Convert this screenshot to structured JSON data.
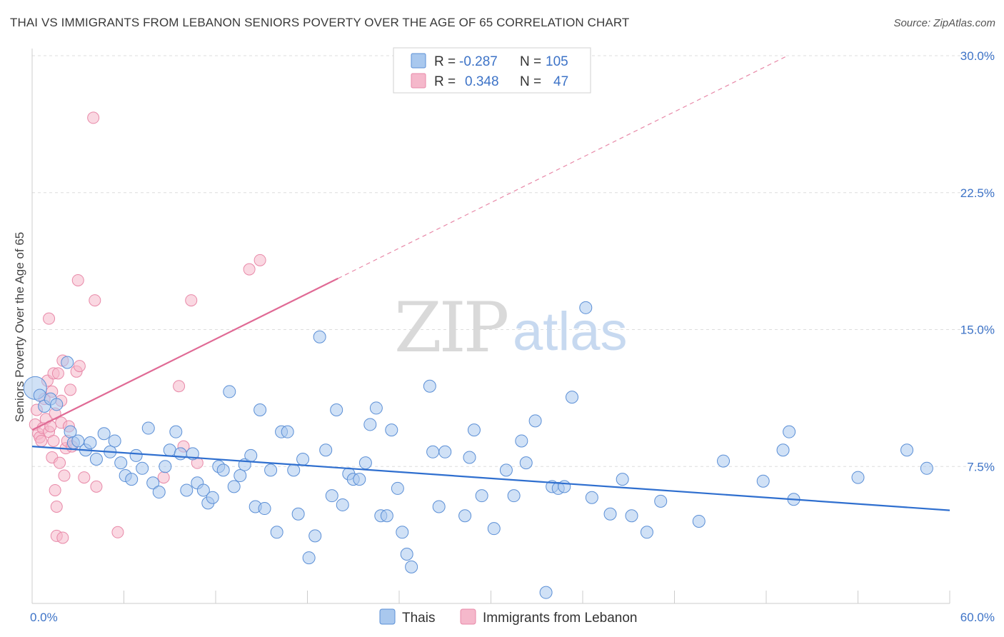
{
  "title": "THAI VS IMMIGRANTS FROM LEBANON SENIORS POVERTY OVER THE AGE OF 65 CORRELATION CHART",
  "source": "Source: ZipAtlas.com",
  "watermark": {
    "zip": "ZIP",
    "atlas": "atlas"
  },
  "colors": {
    "thais_fill": "#a9c8ee",
    "thais_stroke": "#5b8fd6",
    "thais_line": "#2f6fcf",
    "lebanon_fill": "#f5b8cb",
    "lebanon_stroke": "#e889a8",
    "lebanon_line": "#e06a95",
    "tick_label": "#3d73c7",
    "grid": "#dddddd"
  },
  "legend": {
    "rows": [
      {
        "r_label": "R =",
        "r_value": "-0.287",
        "n_label": "N =",
        "n_value": "105"
      },
      {
        "r_label": "R =",
        "r_value": "0.348",
        "n_label": "N =",
        "n_value": "47"
      }
    ]
  },
  "bottom_legend": [
    "Thais",
    "Immigrants from Lebanon"
  ],
  "chart_data": {
    "type": "scatter",
    "title": "THAI VS IMMIGRANTS FROM LEBANON SENIORS POVERTY OVER THE AGE OF 65 CORRELATION CHART",
    "xlabel": "",
    "ylabel": "Seniors Poverty Over the Age of 65",
    "xlim": [
      0,
      60
    ],
    "ylim": [
      0,
      30
    ],
    "x_tick_labels": [
      "0.0%",
      "60.0%"
    ],
    "y_tick_labels": [
      "7.5%",
      "15.0%",
      "22.5%",
      "30.0%"
    ],
    "y_ticks": [
      7.5,
      15.0,
      22.5,
      30.0
    ],
    "grid": true,
    "legend_position": "top-center",
    "series": [
      {
        "name": "Thais",
        "trend": {
          "x": [
            0,
            60
          ],
          "y": [
            8.6,
            5.1
          ]
        },
        "points": [
          [
            0.2,
            11.8
          ],
          [
            0.5,
            11.4
          ],
          [
            0.8,
            10.8
          ],
          [
            1.2,
            11.2
          ],
          [
            1.6,
            10.9
          ],
          [
            2.3,
            13.2
          ],
          [
            2.5,
            9.4
          ],
          [
            2.7,
            8.8
          ],
          [
            3.0,
            8.9
          ],
          [
            3.5,
            8.4
          ],
          [
            3.8,
            8.8
          ],
          [
            4.2,
            7.9
          ],
          [
            4.7,
            9.3
          ],
          [
            5.1,
            8.3
          ],
          [
            5.4,
            8.9
          ],
          [
            5.8,
            7.7
          ],
          [
            6.1,
            7.0
          ],
          [
            6.5,
            6.8
          ],
          [
            6.8,
            8.1
          ],
          [
            7.2,
            7.4
          ],
          [
            7.6,
            9.6
          ],
          [
            7.9,
            6.6
          ],
          [
            8.3,
            6.1
          ],
          [
            8.7,
            7.5
          ],
          [
            9.0,
            8.4
          ],
          [
            9.4,
            9.4
          ],
          [
            9.7,
            8.2
          ],
          [
            10.1,
            6.2
          ],
          [
            10.5,
            8.2
          ],
          [
            10.8,
            6.6
          ],
          [
            11.2,
            6.2
          ],
          [
            11.5,
            5.5
          ],
          [
            11.8,
            5.8
          ],
          [
            12.2,
            7.5
          ],
          [
            12.5,
            7.3
          ],
          [
            12.9,
            11.6
          ],
          [
            13.2,
            6.4
          ],
          [
            13.6,
            7.0
          ],
          [
            13.9,
            7.6
          ],
          [
            14.3,
            8.1
          ],
          [
            14.6,
            5.3
          ],
          [
            14.9,
            10.6
          ],
          [
            15.2,
            5.2
          ],
          [
            15.6,
            7.3
          ],
          [
            16.0,
            3.9
          ],
          [
            16.3,
            9.4
          ],
          [
            16.7,
            9.4
          ],
          [
            17.1,
            7.3
          ],
          [
            17.4,
            4.9
          ],
          [
            17.7,
            7.9
          ],
          [
            18.1,
            2.5
          ],
          [
            18.5,
            3.7
          ],
          [
            18.8,
            14.6
          ],
          [
            19.2,
            8.4
          ],
          [
            19.6,
            5.9
          ],
          [
            19.9,
            10.6
          ],
          [
            20.3,
            5.4
          ],
          [
            20.7,
            7.1
          ],
          [
            21.0,
            6.8
          ],
          [
            21.4,
            6.8
          ],
          [
            21.8,
            7.7
          ],
          [
            22.1,
            9.8
          ],
          [
            22.5,
            10.7
          ],
          [
            22.8,
            4.8
          ],
          [
            23.2,
            4.8
          ],
          [
            23.5,
            9.5
          ],
          [
            23.9,
            6.3
          ],
          [
            24.2,
            3.9
          ],
          [
            24.5,
            2.7
          ],
          [
            24.8,
            2.0
          ],
          [
            26.0,
            11.9
          ],
          [
            26.2,
            8.3
          ],
          [
            26.6,
            5.3
          ],
          [
            27.0,
            8.3
          ],
          [
            28.3,
            4.8
          ],
          [
            28.6,
            8.0
          ],
          [
            28.9,
            9.5
          ],
          [
            29.4,
            5.9
          ],
          [
            30.2,
            4.1
          ],
          [
            31.0,
            7.3
          ],
          [
            31.5,
            5.9
          ],
          [
            32.0,
            8.9
          ],
          [
            32.3,
            7.7
          ],
          [
            32.9,
            10.0
          ],
          [
            33.6,
            0.6
          ],
          [
            34.0,
            6.4
          ],
          [
            34.4,
            6.3
          ],
          [
            34.8,
            6.4
          ],
          [
            35.3,
            11.3
          ],
          [
            36.2,
            16.2
          ],
          [
            36.6,
            5.8
          ],
          [
            37.8,
            4.9
          ],
          [
            38.6,
            6.8
          ],
          [
            39.2,
            4.8
          ],
          [
            40.2,
            3.9
          ],
          [
            41.1,
            5.6
          ],
          [
            43.6,
            4.5
          ],
          [
            45.2,
            7.8
          ],
          [
            47.8,
            6.7
          ],
          [
            49.1,
            8.4
          ],
          [
            49.5,
            9.4
          ],
          [
            49.8,
            5.7
          ],
          [
            54.0,
            6.9
          ],
          [
            57.2,
            8.4
          ],
          [
            58.5,
            7.4
          ]
        ]
      },
      {
        "name": "Immigrants from Lebanon",
        "trend": {
          "x": [
            0,
            20
          ],
          "y": [
            9.5,
            17.8
          ]
        },
        "trend_extended": {
          "x": [
            20,
            49.4
          ],
          "y": [
            17.8,
            30.0
          ]
        },
        "points": [
          [
            0.2,
            9.8
          ],
          [
            0.3,
            10.6
          ],
          [
            0.4,
            9.3
          ],
          [
            0.5,
            9.1
          ],
          [
            0.6,
            8.9
          ],
          [
            0.7,
            9.6
          ],
          [
            0.8,
            11.2
          ],
          [
            0.9,
            10.1
          ],
          [
            1.0,
            12.2
          ],
          [
            1.1,
            9.4
          ],
          [
            1.2,
            9.7
          ],
          [
            1.3,
            11.6
          ],
          [
            1.3,
            8.0
          ],
          [
            1.4,
            8.9
          ],
          [
            1.4,
            12.6
          ],
          [
            1.5,
            6.2
          ],
          [
            1.5,
            10.4
          ],
          [
            1.6,
            5.3
          ],
          [
            1.6,
            3.7
          ],
          [
            1.7,
            12.6
          ],
          [
            1.8,
            7.7
          ],
          [
            1.9,
            9.9
          ],
          [
            1.9,
            11.1
          ],
          [
            2.0,
            13.3
          ],
          [
            2.0,
            3.6
          ],
          [
            2.1,
            7.0
          ],
          [
            2.2,
            8.5
          ],
          [
            2.3,
            8.9
          ],
          [
            2.4,
            9.7
          ],
          [
            2.5,
            11.7
          ],
          [
            2.6,
            8.6
          ],
          [
            2.9,
            12.7
          ],
          [
            3.0,
            17.7
          ],
          [
            3.1,
            13.0
          ],
          [
            3.4,
            6.9
          ],
          [
            4.0,
            26.6
          ],
          [
            4.1,
            16.6
          ],
          [
            4.2,
            6.4
          ],
          [
            5.6,
            3.9
          ],
          [
            8.6,
            6.9
          ],
          [
            9.6,
            11.9
          ],
          [
            9.9,
            8.6
          ],
          [
            10.4,
            16.6
          ],
          [
            10.8,
            7.7
          ],
          [
            14.2,
            18.3
          ],
          [
            14.9,
            18.8
          ],
          [
            1.1,
            15.6
          ]
        ]
      }
    ]
  }
}
